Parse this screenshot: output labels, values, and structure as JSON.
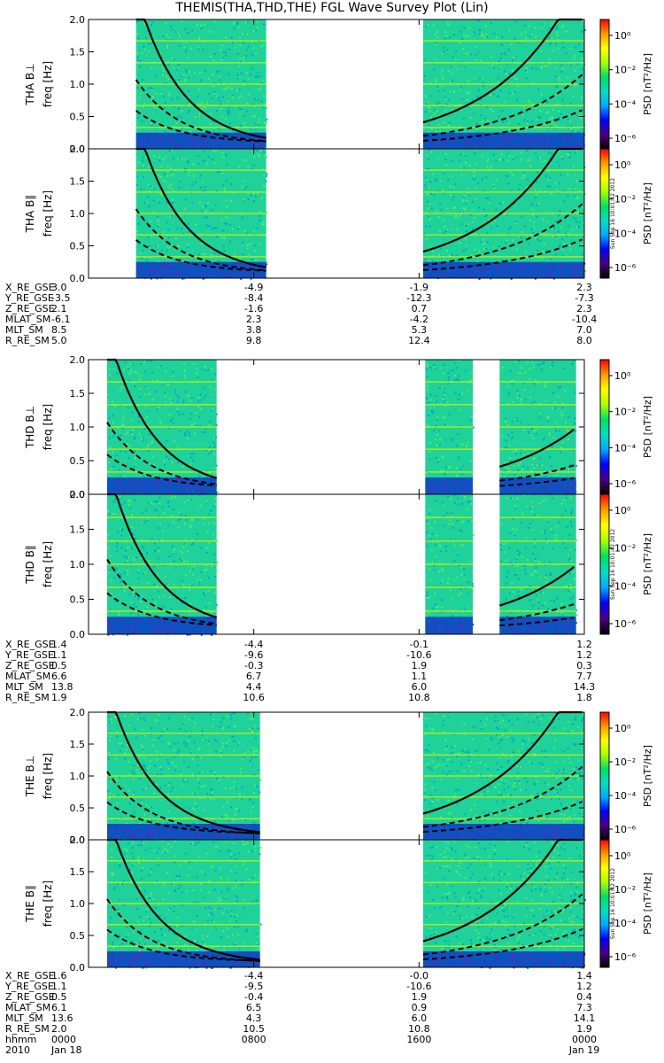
{
  "title": "THEMIS(THA,THD,THE) FGL Wave Survey Plot (Lin)",
  "stamp": "Sun Sep 16 10:01:42 2012",
  "colors": {
    "background": "#ffffff",
    "ink": "#000000"
  },
  "colorbar": {
    "label": "PSD [nT²/Hz]",
    "scale": "log",
    "ticks": [
      "10⁰",
      "10⁻²",
      "10⁻⁴",
      "10⁻⁶"
    ],
    "colormap": [
      "#000000",
      "#4b0082",
      "#0000ff",
      "#00aaff",
      "#00e0c0",
      "#00e060",
      "#aaff00",
      "#ffff00",
      "#ff9900",
      "#ff0000"
    ]
  },
  "chart_data": [
    {
      "type": "heatmap",
      "probe": "THA",
      "panels": [
        {
          "ylabel": "THA B⊥",
          "unit": "freq [Hz]"
        },
        {
          "ylabel": "THA B∥",
          "unit": "freq [Hz]"
        }
      ],
      "ylim": [
        0,
        2.0
      ],
      "yticks": [
        "0.0",
        "0.5",
        "1.0",
        "1.5",
        "2.0"
      ],
      "x_unit": "hours since 2010 Jan 18 0000",
      "xlim": [
        0,
        24
      ],
      "data_intervals_hours": [
        [
          2.3,
          8.6
        ],
        [
          16.2,
          24.0
        ]
      ],
      "gaps_hours": [
        [
          8.6,
          16.2
        ]
      ],
      "curve_labels": [
        "solid",
        "dashed",
        "dashed"
      ],
      "ephemeris": {
        "rows": [
          "X_RE_GSE",
          "Y_RE_GSE",
          "Z_RE_GSE",
          "MLAT_SM",
          "MLT_SM",
          "R_RE_SM"
        ],
        "columns": [
          [
            "3.0",
            "-3.5",
            "2.1",
            "-6.1",
            "8.5",
            "5.0"
          ],
          [
            "-4.9",
            "-8.4",
            "-1.6",
            "2.3",
            "3.8",
            "9.8"
          ],
          [
            "-1.9",
            "-12.3",
            "0.7",
            "-4.2",
            "5.3",
            "12.4"
          ],
          [
            "2.3",
            "-7.3",
            "2.3",
            "-10.4",
            "7.0",
            "8.0"
          ]
        ]
      }
    },
    {
      "type": "heatmap",
      "probe": "THD",
      "panels": [
        {
          "ylabel": "THD B⊥",
          "unit": "freq [Hz]"
        },
        {
          "ylabel": "THD B∥",
          "unit": "freq [Hz]"
        }
      ],
      "ylim": [
        0,
        2.0
      ],
      "yticks": [
        "0.0",
        "0.5",
        "1.0",
        "1.5",
        "2.0"
      ],
      "x_unit": "hours since 2010 Jan 18 0000",
      "xlim": [
        0,
        24
      ],
      "data_intervals_hours": [
        [
          0.9,
          6.2
        ],
        [
          16.3,
          18.6
        ],
        [
          19.9,
          23.6
        ]
      ],
      "gaps_hours": [
        [
          6.2,
          16.3
        ],
        [
          18.6,
          19.9
        ]
      ],
      "ephemeris": {
        "rows": [
          "X_RE_GSE",
          "Y_RE_GSE",
          "Z_RE_GSE",
          "MLAT_SM",
          "MLT_SM",
          "R_RE_SM"
        ],
        "columns": [
          [
            "1.4",
            "1.1",
            "0.5",
            "6.6",
            "13.8",
            "1.9"
          ],
          [
            "-4.4",
            "-9.6",
            "-0.3",
            "6.7",
            "4.4",
            "10.6"
          ],
          [
            "-0.1",
            "-10.6",
            "1.9",
            "1.1",
            "6.0",
            "10.8"
          ],
          [
            "1.2",
            "1.2",
            "0.3",
            "7.7",
            "14.3",
            "1.8"
          ]
        ]
      }
    },
    {
      "type": "heatmap",
      "probe": "THE",
      "panels": [
        {
          "ylabel": "THE B⊥",
          "unit": "freq [Hz]"
        },
        {
          "ylabel": "THE B∥",
          "unit": "freq [Hz]"
        }
      ],
      "ylim": [
        0,
        2.0
      ],
      "yticks": [
        "0.0",
        "0.5",
        "1.0",
        "1.5",
        "2.0"
      ],
      "x_unit": "hours since 2010 Jan 18 0000",
      "xlim": [
        0,
        24
      ],
      "data_intervals_hours": [
        [
          0.9,
          8.3
        ],
        [
          16.2,
          24.0
        ]
      ],
      "gaps_hours": [
        [
          8.3,
          16.2
        ]
      ],
      "ephemeris": {
        "rows": [
          "X_RE_GSE",
          "Y_RE_GSE",
          "Z_RE_GSE",
          "MLAT_SM",
          "MLT_SM",
          "R_RE_SM"
        ],
        "columns": [
          [
            "1.6",
            "1.1",
            "0.5",
            "6.1",
            "13.6",
            "2.0"
          ],
          [
            "-4.4",
            "-9.5",
            "-0.4",
            "6.5",
            "4.3",
            "10.5"
          ],
          [
            "-0.0",
            "-10.6",
            "1.9",
            "0.9",
            "6.0",
            "10.8"
          ],
          [
            "1.4",
            "1.2",
            "0.4",
            "7.3",
            "14.1",
            "1.9"
          ]
        ]
      },
      "time_axis": {
        "row_labels": [
          "hhmm",
          "2010"
        ],
        "hhmm": [
          "0000",
          "0800",
          "1600",
          "0000"
        ],
        "dates": [
          "Jan 18",
          "",
          "",
          "Jan 19"
        ]
      }
    }
  ]
}
